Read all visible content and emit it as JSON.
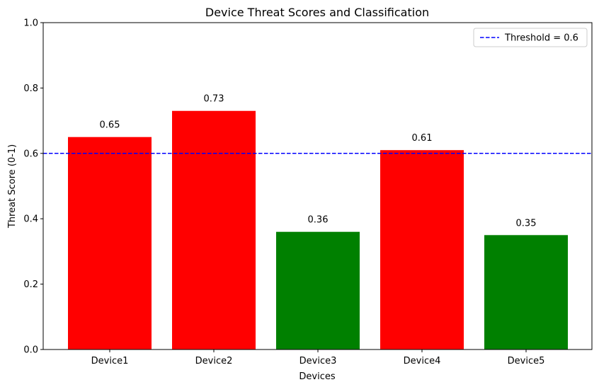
{
  "chart_data": {
    "type": "bar",
    "title": "Device Threat Scores and Classification",
    "xlabel": "Devices",
    "ylabel": "Threat Score (0-1)",
    "categories": [
      "Device1",
      "Device2",
      "Device3",
      "Device4",
      "Device5"
    ],
    "values": [
      0.65,
      0.73,
      0.36,
      0.61,
      0.35
    ],
    "value_labels": [
      "0.65",
      "0.73",
      "0.36",
      "0.61",
      "0.35"
    ],
    "bar_colors": [
      "#ff0000",
      "#ff0000",
      "#008000",
      "#ff0000",
      "#008000"
    ],
    "ylim": [
      0,
      1
    ],
    "yticks": [
      0.0,
      0.2,
      0.4,
      0.6,
      0.8,
      1.0
    ],
    "ytick_labels": [
      "0.0",
      "0.2",
      "0.4",
      "0.6",
      "0.8",
      "1.0"
    ],
    "threshold": {
      "value": 0.6,
      "label": "Threshold = 0.6",
      "color": "#0000ff",
      "style": "dashed"
    },
    "grid": false,
    "legend_position": "top-right"
  }
}
